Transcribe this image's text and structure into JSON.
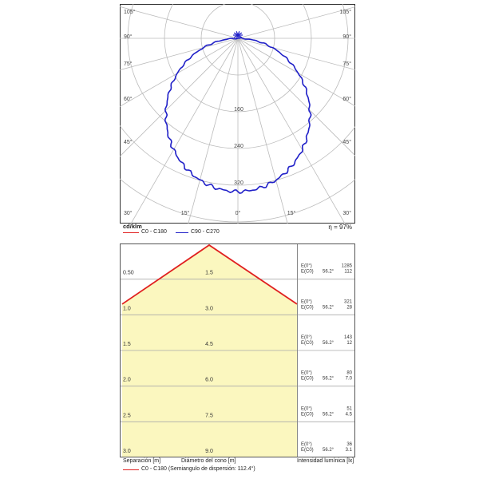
{
  "polar_chart": {
    "unit_label": "cd/klm",
    "efficiency": "η = 97%",
    "angle_labels_left": [
      "105°",
      "90°",
      "75°",
      "60°",
      "45°",
      "30°"
    ],
    "angle_labels_right": [
      "105°",
      "90°",
      "75°",
      "60°",
      "45°",
      "30°"
    ],
    "angle_labels_bottom": [
      "15°",
      "0°",
      "15°"
    ],
    "radial_labels": [
      "160",
      "240",
      "320"
    ],
    "legend": [
      {
        "label": "C0 - C180",
        "color": "#e02020"
      },
      {
        "label": "C90 - C270",
        "color": "#2020c8"
      }
    ],
    "curve_color": "#2020c8"
  },
  "cone_diagram": {
    "rows": [
      {
        "distance": "0.50",
        "diameter": "1.5",
        "e0_label": "E(0°)",
        "e0_value": "1285",
        "ec0_label": "E(C0)",
        "ec0_angle": "56.2°",
        "ec0_value": "112"
      },
      {
        "distance": "1.0",
        "diameter": "3.0",
        "e0_label": "E(0°)",
        "e0_value": "321",
        "ec0_label": "E(C0)",
        "ec0_angle": "56.2°",
        "ec0_value": "28"
      },
      {
        "distance": "1.5",
        "diameter": "4.5",
        "e0_label": "E(0°)",
        "e0_value": "143",
        "ec0_label": "E(C0)",
        "ec0_angle": "56.2°",
        "ec0_value": "12"
      },
      {
        "distance": "2.0",
        "diameter": "6.0",
        "e0_label": "E(0°)",
        "e0_value": "80",
        "ec0_label": "E(C0)",
        "ec0_angle": "56.2°",
        "ec0_value": "7.0"
      },
      {
        "distance": "2.5",
        "diameter": "7.5",
        "e0_label": "E(0°)",
        "e0_value": "51",
        "ec0_label": "E(C0)",
        "ec0_angle": "56.2°",
        "ec0_value": "4.5"
      },
      {
        "distance": "3.0",
        "diameter": "9.0",
        "e0_label": "E(0°)",
        "e0_value": "36",
        "ec0_label": "E(C0)",
        "ec0_angle": "56.2°",
        "ec0_value": "3.1"
      }
    ],
    "footer": {
      "separation_label": "Separación [m]",
      "diameter_label": "Diámetro del cono [m]",
      "intensity_label": "Intensidad lumínica [lx]",
      "legend_label": "C0 - C180 (Semiangulo de dispersión: 112.4°)",
      "legend_color": "#e02020"
    },
    "fill_color": "#fbf7bf",
    "line_color": "#e02020"
  }
}
